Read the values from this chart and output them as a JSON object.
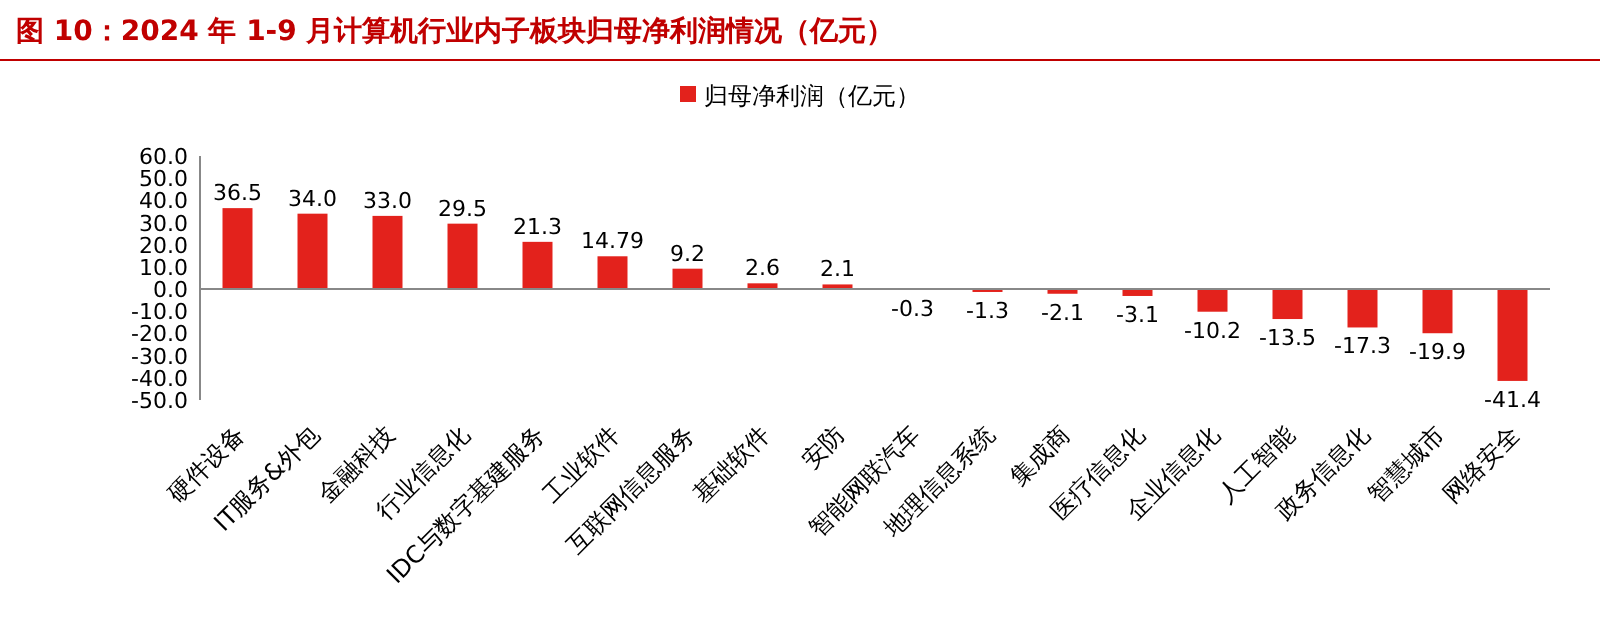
{
  "chart_data": {
    "type": "bar",
    "title": "图 10：2024 年 1-9 月计算机行业内子板块归母净利润情况（亿元）",
    "categories": [
      "硬件设备",
      "IT服务&外包",
      "金融科技",
      "行业信息化",
      "IDC与数字基建服务",
      "工业软件",
      "互联网信息服务",
      "基础软件",
      "安防",
      "智能网联汽车",
      "地理信息系统",
      "集成商",
      "医疗信息化",
      "企业信息化",
      "人工智能",
      "政务信息化",
      "智慧城市",
      "网络安全"
    ],
    "series": [
      {
        "name": "归母净利润（亿元）",
        "color": "#e3221c",
        "values": [
          36.5,
          34.0,
          33.0,
          29.5,
          21.3,
          14.79,
          9.2,
          2.6,
          2.1,
          -0.3,
          -1.3,
          -2.1,
          -3.1,
          -10.2,
          -13.5,
          -17.3,
          -19.9,
          -41.4
        ],
        "value_labels": [
          "36.5",
          "34.0",
          "33.0",
          "29.5",
          "21.3",
          "14.79",
          "9.2",
          "2.6",
          "2.1",
          "-0.3",
          "-1.3",
          "-2.1",
          "-3.1",
          "-10.2",
          "-13.5",
          "-17.3",
          "-19.9",
          "-41.4"
        ]
      }
    ],
    "ylim": [
      -50,
      60
    ],
    "yticks": [
      {
        "value": 60,
        "label": "60.0"
      },
      {
        "value": 50,
        "label": "50.0"
      },
      {
        "value": 40,
        "label": "40.0"
      },
      {
        "value": 30,
        "label": "30.0"
      },
      {
        "value": 20,
        "label": "20.0"
      },
      {
        "value": 10,
        "label": "10.0"
      },
      {
        "value": 0,
        "label": "0.0"
      },
      {
        "value": -10,
        "label": "-10.0"
      },
      {
        "value": -20,
        "label": "-20.0"
      },
      {
        "value": -30,
        "label": "-30.0"
      },
      {
        "value": -40,
        "label": "-40.0"
      },
      {
        "value": -50,
        "label": "-50.0"
      }
    ],
    "legend": "top"
  }
}
